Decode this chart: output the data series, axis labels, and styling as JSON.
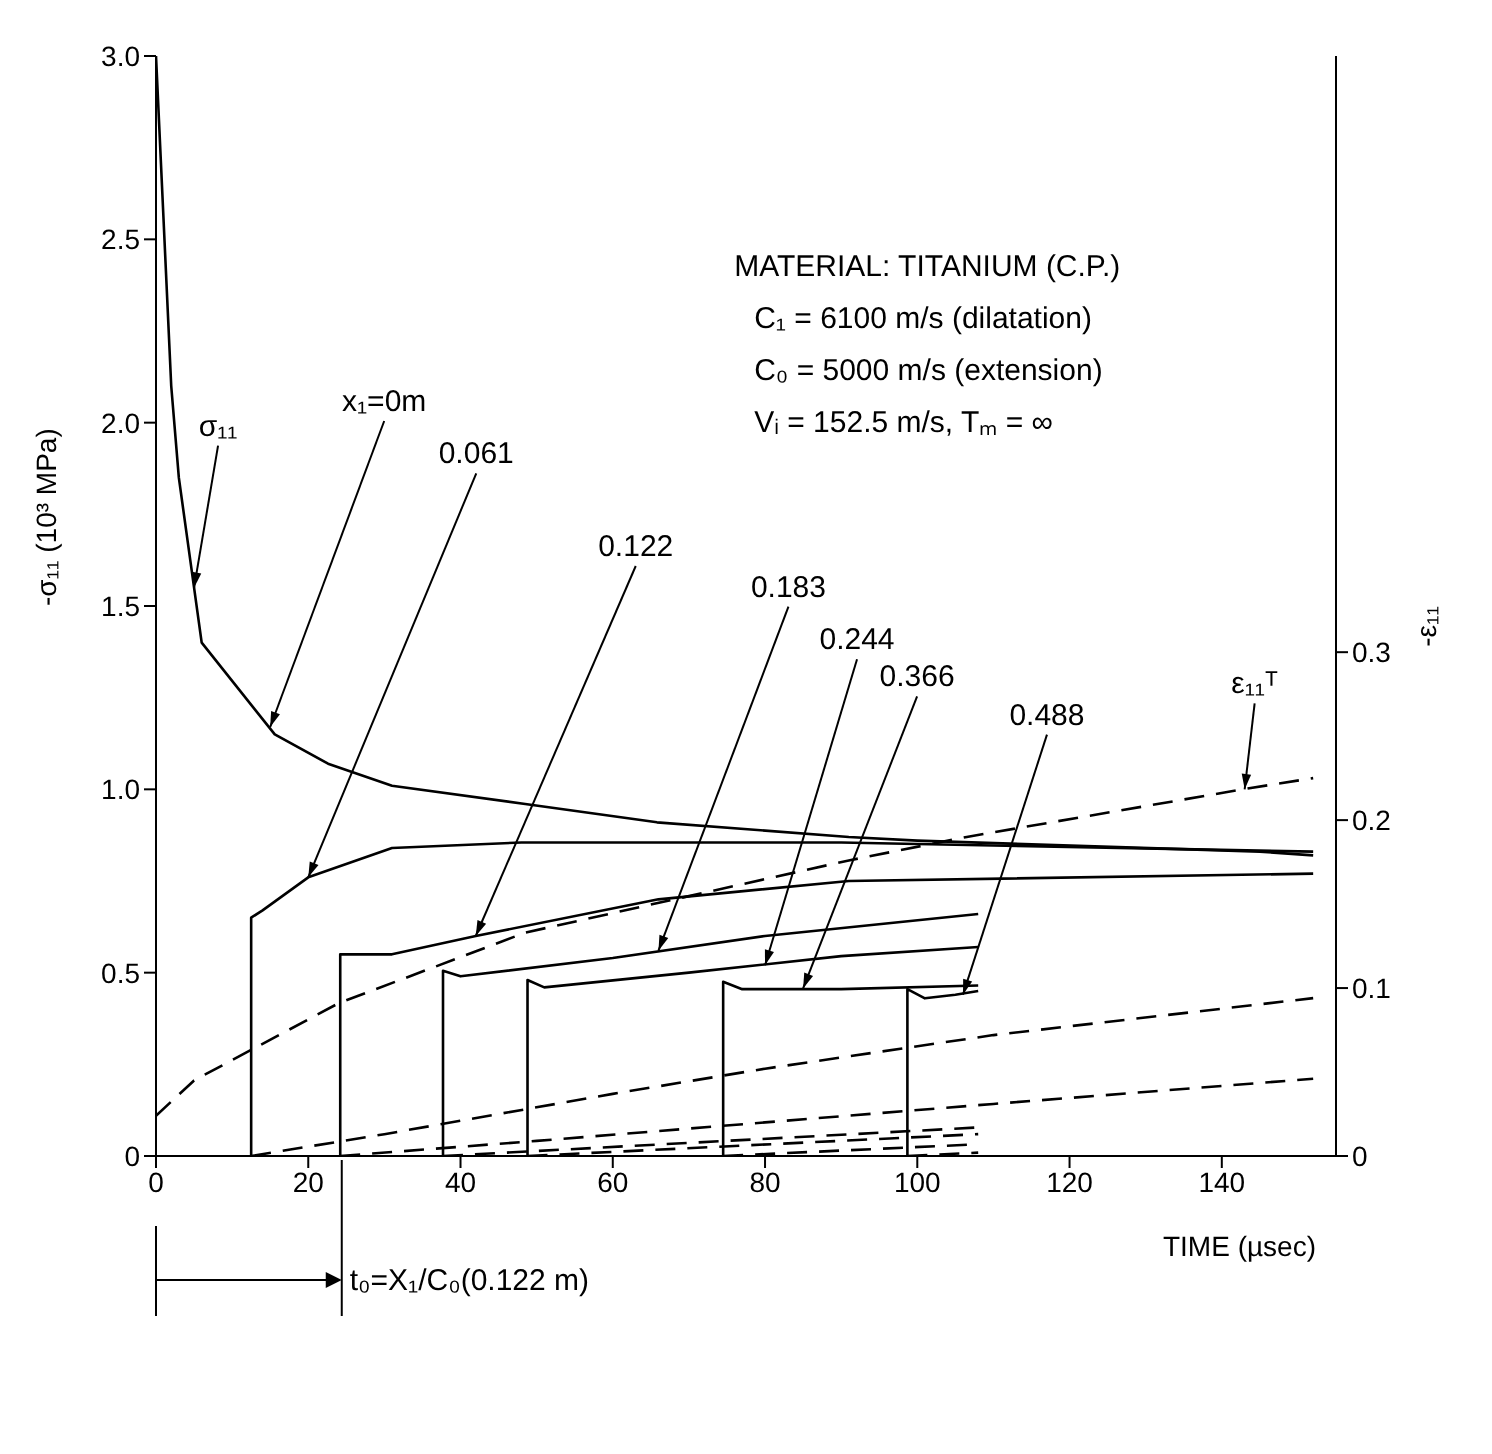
{
  "chart_data": {
    "type": "line",
    "xlabel": "TIME  (µsec)",
    "ylabel": "-σ₁₁  (10³ MPa)",
    "y2label": "-ε₁₁",
    "xlim": [
      0,
      155
    ],
    "xticks": [
      0,
      20,
      40,
      60,
      80,
      100,
      120,
      140
    ],
    "ylim": [
      0,
      3.0
    ],
    "yticks": [
      0,
      0.5,
      {
        "value": 1.0,
        "label": "1.0"
      },
      1.5,
      {
        "value": 2.0,
        "label": "2.0"
      },
      2.5,
      {
        "value": 3.0,
        "label": "3.0"
      }
    ],
    "y2lim": [
      0,
      0.655
    ],
    "y2ticks": [
      0,
      0.1,
      0.2,
      0.3
    ],
    "series": [
      {
        "color": "#000000",
        "x": [
          0,
          1,
          2,
          3,
          4,
          5,
          6,
          15.6,
          22.6,
          31,
          48.5,
          65.8,
          91,
          100,
          145,
          152
        ],
        "values": [
          3.0,
          2.55,
          2.1,
          1.85,
          1.7,
          1.55,
          1.4,
          1.15,
          1.07,
          1.01,
          0.96,
          0.91,
          0.87,
          0.86,
          0.83,
          0.82
        ]
      },
      {
        "color": "#000000",
        "x": [
          12.5,
          12.5,
          14,
          20,
          31,
          48,
          90,
          152
        ],
        "values": [
          0,
          0.65,
          0.67,
          0.76,
          0.84,
          0.855,
          0.855,
          0.83
        ]
      },
      {
        "color": "#000000",
        "x": [
          24.2,
          24.2,
          31,
          42,
          66,
          91,
          152
        ],
        "values": [
          0,
          0.55,
          0.55,
          0.6,
          0.7,
          0.75,
          0.77
        ]
      },
      {
        "color": "#000000",
        "x": [
          37.7,
          37.7,
          40,
          60,
          80,
          108
        ],
        "values": [
          0,
          0.505,
          0.49,
          0.54,
          0.6,
          0.66
        ]
      },
      {
        "color": "#000000",
        "x": [
          48.8,
          48.8,
          51,
          70,
          90,
          108
        ],
        "values": [
          0,
          0.48,
          0.46,
          0.5,
          0.545,
          0.57
        ]
      },
      {
        "color": "#000000",
        "x": [
          74.5,
          74.5,
          77,
          90,
          108
        ],
        "values": [
          0,
          0.475,
          0.455,
          0.455,
          0.465
        ]
      },
      {
        "color": "#000000",
        "x": [
          98.7,
          98.7,
          101,
          105,
          108
        ],
        "values": [
          0,
          0.455,
          0.43,
          0.44,
          0.45
        ]
      },
      {
        "color": "#000000",
        "axis": "y2",
        "line_style": "dashed",
        "x": [
          0,
          5,
          24,
          48.5,
          91,
          106.5,
          143.6,
          152
        ],
        "values": [
          0.024,
          0.045,
          0.091,
          0.133,
          0.176,
          0.19,
          0.219,
          0.225
        ]
      },
      {
        "color": "#000000",
        "axis": "y2",
        "line_style": "dashed",
        "x": [
          12.5,
          30,
          60,
          80,
          110,
          152
        ],
        "values": [
          0,
          0.013,
          0.037,
          0.052,
          0.072,
          0.094
        ]
      },
      {
        "color": "#000000",
        "axis": "y2",
        "line_style": "dashed",
        "x": [
          24.2,
          50,
          80,
          110,
          152
        ],
        "values": [
          0,
          0.009,
          0.02,
          0.031,
          0.046
        ]
      },
      {
        "color": "#000000",
        "axis": "y2",
        "line_style": "dashed",
        "x": [
          37.7,
          108
        ],
        "values": [
          0,
          0.017
        ]
      },
      {
        "color": "#000000",
        "axis": "y2",
        "line_style": "dashed",
        "x": [
          48.8,
          108
        ],
        "values": [
          0,
          0.013
        ]
      },
      {
        "color": "#000000",
        "axis": "y2",
        "line_style": "dashed",
        "x": [
          74.5,
          108
        ],
        "values": [
          0,
          0.007
        ]
      },
      {
        "color": "#000000",
        "axis": "y2",
        "line_style": "dashed",
        "x": [
          98.7,
          108
        ],
        "values": [
          0,
          0.002
        ]
      }
    ],
    "annotations": [
      "MATERIAL: TITANIUM (C.P.)",
      "C₁ = 6100 m/s  (dilatation)",
      "C₀ = 5000 m/s  (extension)",
      "Vᵢ  = 152.5 m/s,  Tₘ = ∞",
      {
        "text": "σ₁₁",
        "x": 5,
        "y": 1.55
      },
      {
        "text": "x₁=0m",
        "x": 15,
        "y": 1.17
      },
      {
        "text": "0.061",
        "x": 20,
        "y": 0.76
      },
      {
        "text": "0.122",
        "x": 42,
        "y": 0.6
      },
      {
        "text": "0.183",
        "x": 66,
        "y": 0.56
      },
      {
        "text": "0.244",
        "x": 80,
        "y": 0.52
      },
      {
        "text": "0.366",
        "x": 85,
        "y": 0.457
      },
      {
        "text": "0.488",
        "x": 106,
        "y": 0.44
      },
      {
        "text": "ε₁₁ᵀ",
        "x": 143,
        "y": 1.0
      }
    ],
    "ref_lines": [
      {
        "axis": "x",
        "value": 24.4,
        "label": "t₀=X₁/C₀(0.122 m)"
      }
    ]
  }
}
